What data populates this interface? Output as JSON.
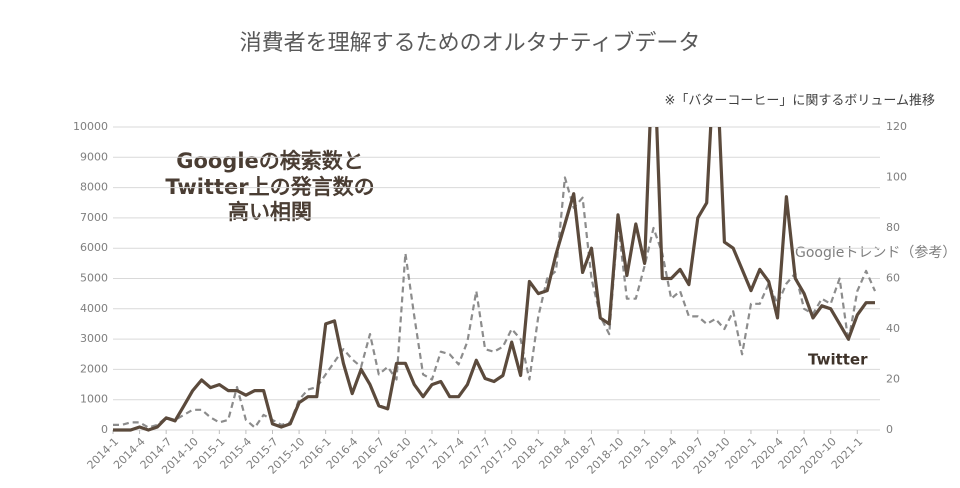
{
  "chart_data": {
    "type": "line",
    "title": "消費者を理解するためのオルタナティブデータ",
    "subtitle": "※「バターコーヒー」に関するボリューム推移",
    "annotation": [
      "Googleの検索数と",
      "Twitter上の発言数の",
      "高い相関"
    ],
    "categories": [
      "2014-1",
      null,
      null,
      "2014-4",
      null,
      null,
      "2014-7",
      null,
      null,
      "2014-10",
      null,
      null,
      "2015-1",
      null,
      null,
      "2015-4",
      null,
      null,
      "2015-7",
      null,
      null,
      "2015-10",
      null,
      null,
      "2016-1",
      null,
      null,
      "2016-4",
      null,
      null,
      "2016-7",
      null,
      null,
      "2016-10",
      null,
      null,
      "2017-1",
      null,
      null,
      "2017-4",
      null,
      null,
      "2017-7",
      null,
      null,
      "2017-10",
      null,
      null,
      "2018-1",
      null,
      null,
      "2018-4",
      null,
      null,
      "2018-7",
      null,
      null,
      "2018-10",
      null,
      null,
      "2019-1",
      null,
      null,
      "2019-4",
      null,
      null,
      "2019-7",
      null,
      null,
      "2019-10",
      null,
      null,
      "2020-1",
      null,
      null,
      "2020-4",
      null,
      null,
      "2020-7",
      null,
      null,
      "2020-10",
      null,
      null,
      "2021-1",
      null,
      null
    ],
    "series": [
      {
        "name": "Twitter",
        "color": "#5b4a3c",
        "dashed": false,
        "values": [
          0,
          0,
          0,
          100,
          0,
          100,
          400,
          300,
          800,
          1300,
          1650,
          1400,
          1500,
          1300,
          1300,
          1150,
          1300,
          1300,
          200,
          100,
          200,
          900,
          1100,
          1100,
          3500,
          3600,
          2200,
          1200,
          2000,
          1500,
          800,
          700,
          2200,
          2200,
          1500,
          1100,
          1500,
          1600,
          1100,
          1100,
          1500,
          2300,
          1700,
          1600,
          1800,
          2900,
          1800,
          4900,
          4500,
          4600,
          5800,
          6800,
          7800,
          5200,
          6000,
          3700,
          3500,
          7100,
          5100,
          6800,
          5500,
          13000,
          5000,
          5000,
          5300,
          4800,
          7000,
          7500,
          13000,
          6200,
          6000,
          5300,
          4600,
          5300,
          4900,
          3700,
          7700,
          5000,
          4500,
          3700,
          4100,
          4000,
          3500,
          3000,
          3800,
          4200,
          4200
        ]
      },
      {
        "name": "Googleトレンド（参考）",
        "color": "#8c8c8c",
        "dashed": true,
        "axis": "y2",
        "values": [
          2,
          2,
          3,
          3,
          1,
          2,
          5,
          4,
          6,
          8,
          8,
          5,
          3,
          4,
          17,
          4,
          1,
          6,
          4,
          2,
          3,
          12,
          16,
          17,
          22,
          27,
          32,
          28,
          25,
          38,
          22,
          25,
          20,
          70,
          45,
          22,
          20,
          31,
          30,
          26,
          35,
          55,
          32,
          31,
          33,
          40,
          36,
          20,
          45,
          60,
          63,
          100,
          88,
          92,
          60,
          45,
          38,
          82,
          52,
          52,
          65,
          80,
          70,
          52,
          55,
          45,
          45,
          42,
          44,
          40,
          47,
          30,
          50,
          50,
          58,
          50,
          58,
          62,
          48,
          46,
          52,
          50,
          60,
          35,
          55,
          63,
          55
        ]
      }
    ],
    "ylim": [
      0,
      10000
    ],
    "yticks": [
      0,
      1000,
      2000,
      3000,
      4000,
      5000,
      6000,
      7000,
      8000,
      9000,
      10000
    ],
    "y2lim": [
      0,
      120
    ],
    "y2ticks": [
      0,
      20,
      40,
      60,
      80,
      100,
      120
    ],
    "grid": true
  }
}
